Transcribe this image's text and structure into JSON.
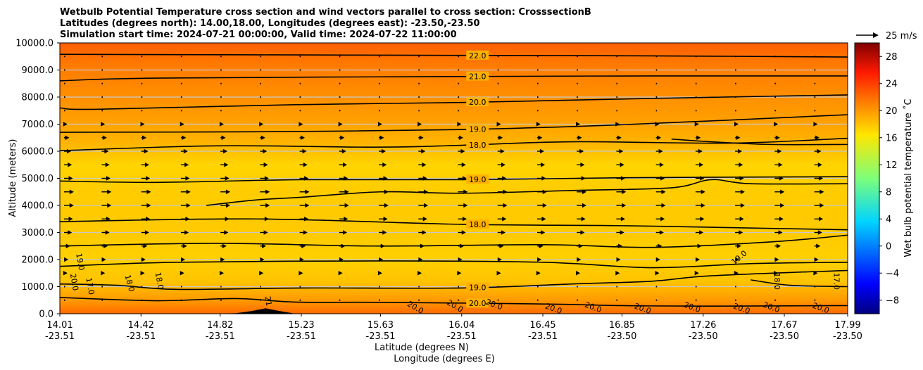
{
  "chart_data": {
    "type": "contourf_cross_section",
    "title_lines": [
      "Wetbulb Potential Temperature cross section and wind vectors parallel to cross section: CrosssectionB",
      "Latitudes (degrees north): 14.00,18.00, Longitudes (degrees east): -23.50,-23.50",
      "Simulation start time: 2024-07-21 00:00:00, Valid time: 2024-07-22 11:00:00"
    ],
    "ylabel": "Altitude (meters)",
    "xlabel_lat": "Latitude (degrees N)",
    "xlabel_lon": "Longitude (degrees E)",
    "ylim": [
      0,
      10000
    ],
    "yticks": [
      "0.0",
      "1000.0",
      "2000.0",
      "3000.0",
      "4000.0",
      "5000.0",
      "6000.0",
      "7000.0",
      "8000.0",
      "9000.0",
      "10000.0"
    ],
    "y_tick_values": [
      0,
      1000,
      2000,
      3000,
      4000,
      5000,
      6000,
      7000,
      8000,
      9000,
      10000
    ],
    "xlim": [
      14.01,
      17.99
    ],
    "x_tick_values": [
      14.01,
      14.42,
      14.82,
      15.23,
      15.63,
      16.04,
      16.45,
      16.85,
      17.26,
      17.67,
      17.99
    ],
    "xticks_lat": [
      "14.01",
      "14.42",
      "14.82",
      "15.23",
      "15.63",
      "16.04",
      "16.45",
      "16.85",
      "17.26",
      "17.67",
      "17.99"
    ],
    "xticks_lon": [
      "-23.51",
      "-23.51",
      "-23.51",
      "-23.51",
      "-23.51",
      "-23.51",
      "-23.51",
      "-23.50",
      "-23.50",
      "-23.50",
      "-23.50"
    ],
    "colorbar": {
      "label": "Wet bulb potential temperature ˚C",
      "range": [
        -10,
        30
      ],
      "ticks": [
        "28",
        "24",
        "20",
        "16",
        "12",
        "8",
        "4",
        "0",
        "−4",
        "−8"
      ],
      "tick_values": [
        28,
        24,
        20,
        16,
        12,
        8,
        4,
        0,
        -4,
        -8
      ]
    },
    "quiver_key": "25 m/s",
    "contour_lines": [
      {
        "level": 22,
        "label": "22.0",
        "points": [
          [
            14.01,
            9580
          ],
          [
            15.0,
            9560
          ],
          [
            16.04,
            9540
          ],
          [
            17.0,
            9520
          ],
          [
            17.99,
            9480
          ]
        ]
      },
      {
        "level": 21,
        "label": "21.0",
        "points": [
          [
            14.01,
            8600
          ],
          [
            14.5,
            8700
          ],
          [
            16.04,
            8760
          ],
          [
            17.0,
            8780
          ],
          [
            17.99,
            8780
          ]
        ]
      },
      {
        "level": 20,
        "label": "20.0",
        "points": [
          [
            14.01,
            7600
          ],
          [
            14.2,
            7550
          ],
          [
            15.2,
            7720
          ],
          [
            16.04,
            7800
          ],
          [
            17.0,
            7950
          ],
          [
            17.99,
            8080
          ]
        ]
      },
      {
        "level": 19,
        "label": "19.0",
        "points": [
          [
            14.01,
            6700
          ],
          [
            15.0,
            6720
          ],
          [
            16.04,
            6800
          ],
          [
            16.85,
            6980
          ],
          [
            17.99,
            7350
          ]
        ]
      },
      {
        "level": 18,
        "label": "18.0",
        "points": [
          [
            14.01,
            6020
          ],
          [
            14.8,
            6200
          ],
          [
            15.6,
            6150
          ],
          [
            16.04,
            6220
          ],
          [
            16.6,
            6350
          ],
          [
            17.4,
            6300
          ],
          [
            17.99,
            6480
          ]
        ]
      },
      {
        "level": 18,
        "label": "",
        "points": [
          [
            17.1,
            6450
          ],
          [
            17.3,
            6350
          ],
          [
            17.6,
            6250
          ],
          [
            17.99,
            6250
          ]
        ]
      },
      {
        "level": 19,
        "label": "19.0",
        "points": [
          [
            14.01,
            4900
          ],
          [
            14.5,
            4850
          ],
          [
            15.23,
            4950
          ],
          [
            16.04,
            4950
          ],
          [
            16.85,
            5020
          ],
          [
            17.99,
            5060
          ]
        ]
      },
      {
        "level": 19,
        "label": "",
        "points": [
          [
            14.75,
            4000
          ],
          [
            15.0,
            4200
          ],
          [
            15.23,
            4300
          ],
          [
            15.63,
            4500
          ],
          [
            16.04,
            4450
          ],
          [
            16.6,
            4550
          ],
          [
            17.1,
            4650
          ],
          [
            17.3,
            4950
          ],
          [
            17.5,
            4800
          ],
          [
            17.99,
            4800
          ]
        ]
      },
      {
        "level": 18,
        "label": "18.0",
        "points": [
          [
            14.01,
            3400
          ],
          [
            15.0,
            3500
          ],
          [
            16.04,
            3300
          ],
          [
            16.85,
            3250
          ],
          [
            17.6,
            3150
          ],
          [
            17.99,
            3100
          ]
        ]
      },
      {
        "level": 18,
        "label": "",
        "points": [
          [
            14.01,
            2500
          ],
          [
            14.8,
            2600
          ],
          [
            15.6,
            2500
          ],
          [
            16.45,
            2550
          ],
          [
            17.0,
            2450
          ],
          [
            17.6,
            2650
          ],
          [
            17.99,
            2900
          ]
        ]
      },
      {
        "level": 19,
        "label": "",
        "points": [
          [
            14.01,
            1750
          ],
          [
            14.6,
            1900
          ],
          [
            15.63,
            1950
          ],
          [
            16.45,
            1900
          ],
          [
            17.0,
            1700
          ],
          [
            17.5,
            1850
          ],
          [
            17.99,
            1900
          ]
        ]
      },
      {
        "level": 19,
        "label": "19.0",
        "points": [
          [
            14.01,
            1100
          ],
          [
            14.3,
            1050
          ],
          [
            14.6,
            900
          ],
          [
            15.23,
            950
          ],
          [
            16.04,
            950
          ],
          [
            16.6,
            1100
          ],
          [
            17.0,
            1200
          ],
          [
            17.3,
            1400
          ],
          [
            17.99,
            1600
          ]
        ]
      },
      {
        "level": 20,
        "label": "20.0",
        "points": [
          [
            14.01,
            600
          ],
          [
            14.5,
            480
          ],
          [
            14.9,
            560
          ],
          [
            15.2,
            430
          ],
          [
            15.63,
            420
          ],
          [
            16.45,
            360
          ],
          [
            16.85,
            300
          ],
          [
            17.26,
            280
          ],
          [
            17.99,
            300
          ]
        ]
      },
      {
        "level": 17,
        "label": "17.0",
        "points": [
          [
            17.5,
            1250
          ],
          [
            17.7,
            1050
          ],
          [
            17.99,
            1000
          ]
        ]
      }
    ],
    "contour_labels_extra": [
      {
        "text": "19.0",
        "x": 14.1,
        "y": 1900,
        "rot": 80
      },
      {
        "text": "17.0",
        "x": 14.15,
        "y": 1000,
        "rot": 80
      },
      {
        "text": "20.0",
        "x": 14.07,
        "y": 1150,
        "rot": 80
      },
      {
        "text": "18.0",
        "x": 14.35,
        "y": 1100,
        "rot": 75
      },
      {
        "text": "18.0",
        "x": 14.5,
        "y": 1200,
        "rot": 80
      },
      {
        "text": "21",
        "x": 15.05,
        "y": 450,
        "rot": 80
      },
      {
        "text": "20.0",
        "x": 15.8,
        "y": 150,
        "rot": 30
      },
      {
        "text": "20.0",
        "x": 16.0,
        "y": 200,
        "rot": 30
      },
      {
        "text": "20.0",
        "x": 16.2,
        "y": 250,
        "rot": 20
      },
      {
        "text": "20.0",
        "x": 16.5,
        "y": 100,
        "rot": 20
      },
      {
        "text": "20.0",
        "x": 16.7,
        "y": 150,
        "rot": 20
      },
      {
        "text": "20.0",
        "x": 16.95,
        "y": 100,
        "rot": 20
      },
      {
        "text": "20.0",
        "x": 17.2,
        "y": 150,
        "rot": 20
      },
      {
        "text": "20.0",
        "x": 17.45,
        "y": 100,
        "rot": 20
      },
      {
        "text": "20.0",
        "x": 17.6,
        "y": 150,
        "rot": 20
      },
      {
        "text": "20.0",
        "x": 17.85,
        "y": 120,
        "rot": 20
      },
      {
        "text": "19.0",
        "x": 17.45,
        "y": 2000,
        "rot": -40
      },
      {
        "text": "18.0",
        "x": 17.62,
        "y": 1200,
        "rot": 90
      },
      {
        "text": "17.0",
        "x": 17.92,
        "y": 1200,
        "rot": 90
      }
    ],
    "terrain": [
      [
        14.8,
        0
      ],
      [
        14.9,
        20
      ],
      [
        14.98,
        100
      ],
      [
        15.05,
        200
      ],
      [
        15.12,
        100
      ],
      [
        15.2,
        0
      ]
    ],
    "wind_vector_rows": [
      {
        "altitude": 9500,
        "speed_ms": 1
      },
      {
        "altitude": 9000,
        "speed_ms": 1
      },
      {
        "altitude": 8500,
        "speed_ms": 1
      },
      {
        "altitude": 8000,
        "speed_ms": 1
      },
      {
        "altitude": 7500,
        "speed_ms": 2
      },
      {
        "altitude": 7000,
        "speed_ms": 3
      },
      {
        "altitude": 6500,
        "speed_ms": 5
      },
      {
        "altitude": 6000,
        "speed_ms": 7
      },
      {
        "altitude": 5500,
        "speed_ms": 8
      },
      {
        "altitude": 5000,
        "speed_ms": 9
      },
      {
        "altitude": 4500,
        "speed_ms": 10
      },
      {
        "altitude": 4000,
        "speed_ms": 10
      },
      {
        "altitude": 3500,
        "speed_ms": 9
      },
      {
        "altitude": 3000,
        "speed_ms": 8
      },
      {
        "altitude": 2500,
        "speed_ms": 6
      },
      {
        "altitude": 2000,
        "speed_ms": 4
      },
      {
        "altitude": 1500,
        "speed_ms": 3
      },
      {
        "altitude": 1000,
        "speed_ms": 2
      },
      {
        "altitude": 500,
        "speed_ms": 1
      }
    ],
    "wind_vector_columns": [
      14.01,
      14.2,
      14.4,
      14.6,
      14.8,
      15.0,
      15.2,
      15.4,
      15.6,
      15.8,
      16.0,
      16.2,
      16.4,
      16.6,
      16.8,
      17.0,
      17.2,
      17.4,
      17.6,
      17.8
    ]
  }
}
